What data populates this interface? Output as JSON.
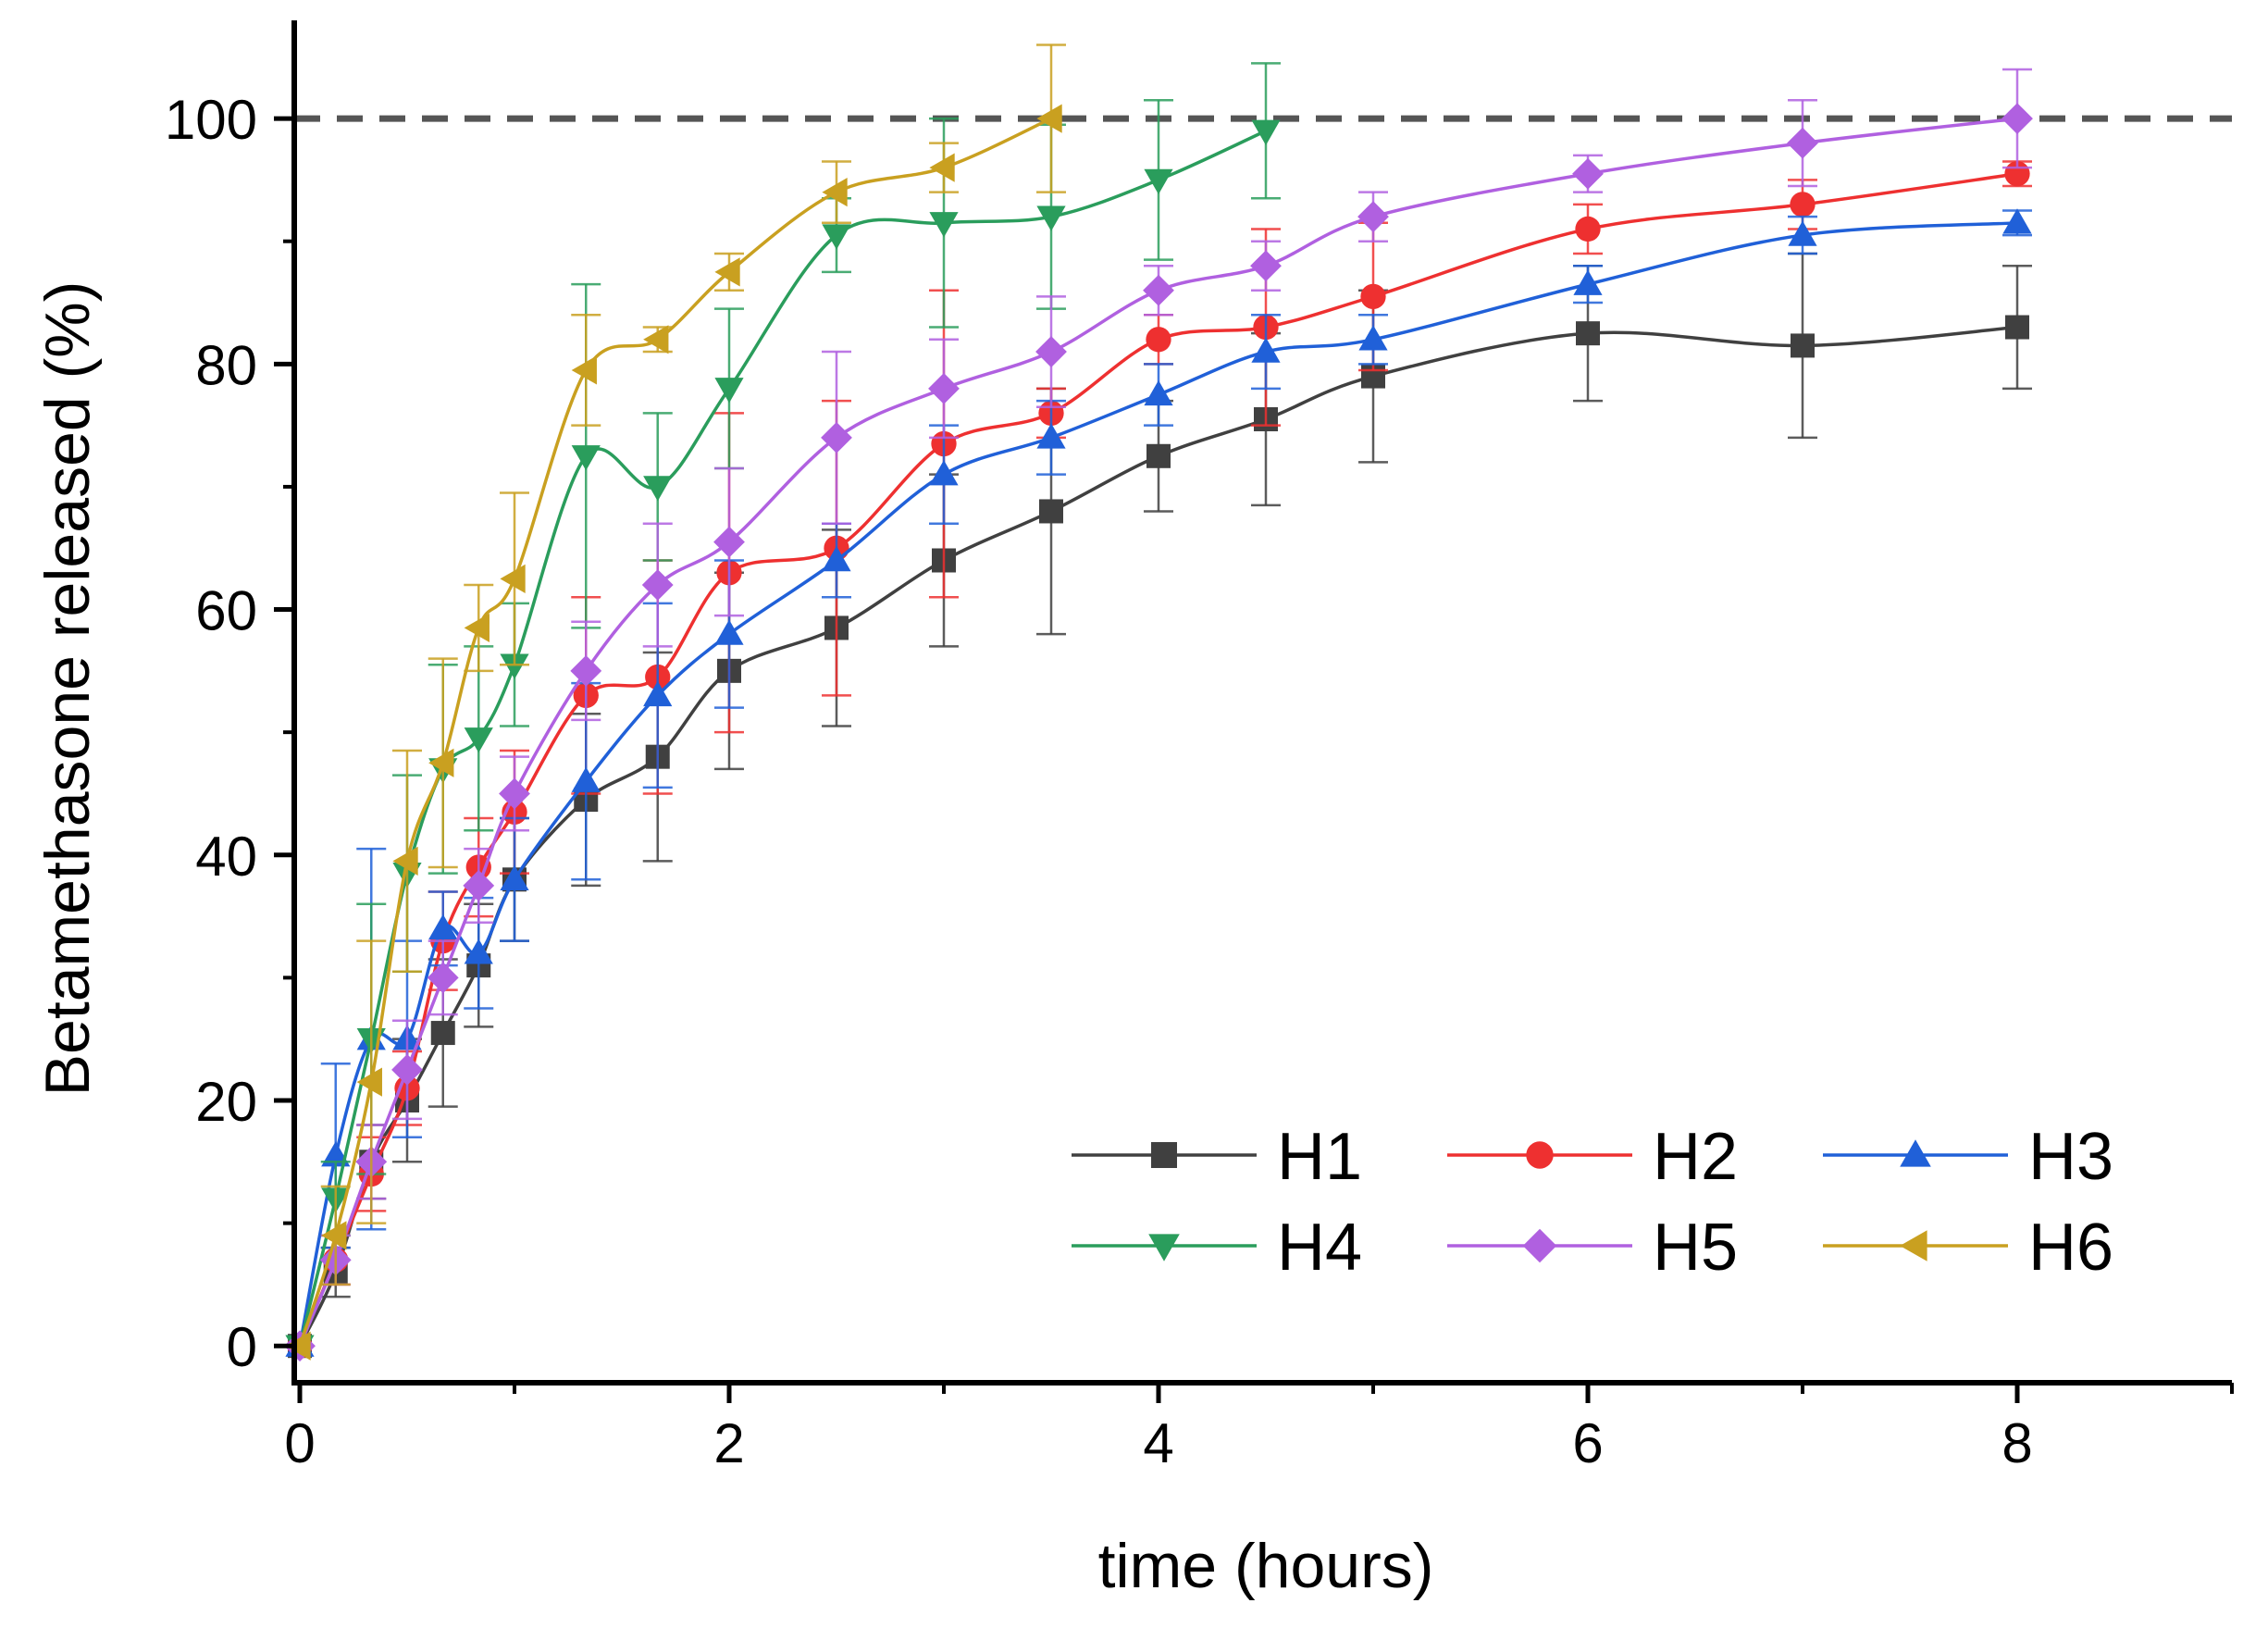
{
  "chart_data": {
    "type": "line",
    "title": "",
    "xlabel": "time (hours)",
    "ylabel": "Betamethasone released (%)",
    "xlim": [
      0,
      9
    ],
    "ylim": [
      -3,
      108
    ],
    "xticks": [
      0,
      2,
      4,
      6,
      8
    ],
    "xtick_labels": [
      "0",
      "2",
      "4",
      "6",
      "8"
    ],
    "yticks": [
      0,
      20,
      40,
      60,
      80,
      100
    ],
    "ytick_labels": [
      "0",
      "20",
      "40",
      "60",
      "80",
      "100"
    ],
    "grid": false,
    "legend_position": "bottom-right",
    "reference_line": {
      "y": 100,
      "style": "dashed",
      "color": "#555555"
    },
    "series": [
      {
        "name": "H1",
        "color": "#404040",
        "marker": "square",
        "x": [
          0,
          0.167,
          0.333,
          0.5,
          0.667,
          0.833,
          1,
          1.333,
          1.667,
          2,
          2.5,
          3,
          3.5,
          4,
          4.5,
          5,
          6,
          7,
          8
        ],
        "y": [
          0,
          6,
          15,
          20,
          25.5,
          31,
          38,
          44.5,
          48,
          55,
          58.5,
          64,
          68,
          72.5,
          75.5,
          79,
          82.5,
          81.5,
          83
        ],
        "err": [
          0,
          2,
          3,
          5,
          6,
          5,
          5,
          7,
          8.5,
          8,
          8,
          7,
          10,
          4.5,
          7,
          7,
          5.5,
          7.5,
          5
        ]
      },
      {
        "name": "H2",
        "color": "#ee3030",
        "marker": "circle",
        "x": [
          0,
          0.167,
          0.333,
          0.5,
          0.667,
          0.833,
          1,
          1.333,
          1.667,
          2,
          2.5,
          3,
          3.5,
          4,
          4.5,
          5,
          6,
          7,
          8
        ],
        "y": [
          0,
          7,
          14,
          21,
          33,
          39,
          43.5,
          53,
          54.5,
          63,
          65,
          73.5,
          76,
          82,
          83,
          85.5,
          91,
          93,
          95.5
        ],
        "err": [
          0,
          2,
          3,
          3,
          4,
          4,
          5,
          8,
          9.5,
          13,
          12,
          12.5,
          2,
          2,
          8,
          6,
          2,
          2,
          1
        ]
      },
      {
        "name": "H3",
        "color": "#2060d8",
        "marker": "triangle-up",
        "x": [
          0,
          0.167,
          0.333,
          0.5,
          0.667,
          0.833,
          1,
          1.333,
          1.667,
          2,
          2.5,
          3,
          3.5,
          4,
          4.5,
          5,
          6,
          7,
          8
        ],
        "y": [
          0,
          15.5,
          25,
          25,
          34,
          32,
          38,
          46,
          53,
          58,
          64,
          71,
          74,
          77.5,
          81,
          82,
          86.5,
          90.5,
          91.5
        ],
        "err": [
          0,
          7.5,
          15.5,
          8,
          3,
          4.5,
          5,
          8,
          7.5,
          6,
          3,
          4,
          3,
          2.5,
          3,
          2,
          1.5,
          1.5,
          1
        ]
      },
      {
        "name": "H4",
        "color": "#2a9d5c",
        "marker": "triangle-down",
        "x": [
          0,
          0.167,
          0.333,
          0.5,
          0.667,
          0.833,
          1,
          1.333,
          1.667,
          2,
          2.5,
          3,
          3.5,
          4,
          4.5
        ],
        "y": [
          0,
          12,
          25,
          38.5,
          47,
          49.5,
          55.5,
          72.5,
          70,
          78,
          90.5,
          91.5,
          92,
          95,
          99
        ],
        "err": [
          0,
          3,
          11,
          8,
          8.5,
          7.5,
          5,
          14,
          6,
          6.5,
          3,
          8.5,
          7.5,
          6.5,
          5.5
        ]
      },
      {
        "name": "H5",
        "color": "#b060e0",
        "marker": "diamond",
        "x": [
          0,
          0.167,
          0.333,
          0.5,
          0.667,
          0.833,
          1,
          1.333,
          1.667,
          2,
          2.5,
          3,
          3.5,
          4,
          4.5,
          5,
          6,
          7,
          8
        ],
        "y": [
          0,
          7,
          15,
          22.5,
          30,
          37.5,
          45,
          55,
          62,
          65.5,
          74,
          78,
          81,
          86,
          88,
          92,
          95.5,
          98,
          100
        ],
        "err": [
          0,
          2,
          3,
          4,
          3,
          3,
          3,
          4,
          5,
          6,
          7,
          4,
          4.5,
          2,
          2,
          2,
          1.5,
          3.5,
          4
        ]
      },
      {
        "name": "H6",
        "color": "#c9a020",
        "marker": "triangle-left",
        "x": [
          0,
          0.167,
          0.333,
          0.5,
          0.667,
          0.833,
          1,
          1.333,
          1.667,
          2,
          2.5,
          3,
          3.5
        ],
        "y": [
          0,
          9,
          21.5,
          39.5,
          47.5,
          58.5,
          62.5,
          79.5,
          82,
          87.5,
          94,
          96,
          100
        ],
        "err": [
          0,
          4,
          11.5,
          9,
          8.5,
          3.5,
          7,
          4.5,
          1,
          1.5,
          2.5,
          2,
          6
        ]
      }
    ]
  }
}
